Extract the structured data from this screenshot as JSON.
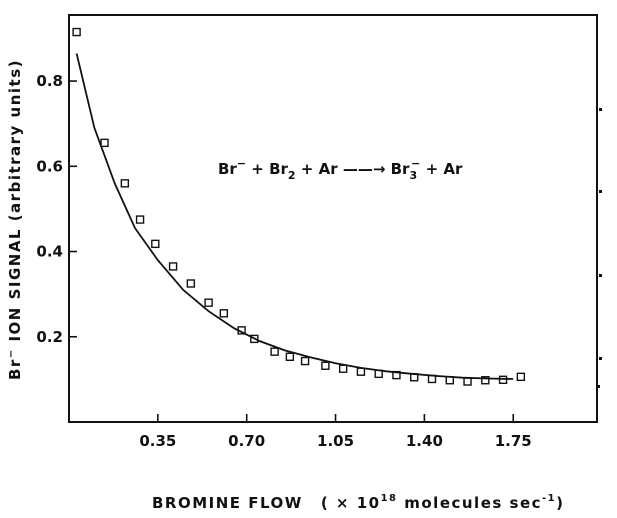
{
  "chart_data": {
    "type": "scatter",
    "title": "",
    "xlabel": {
      "main": "BROMINE  FLOW",
      "unit_open": "( × 10",
      "unit_exp": "18",
      "unit_rest": " molecules  sec",
      "unit_exp2": "-1",
      "unit_close": ")"
    },
    "ylabel": {
      "prefix": "Br",
      "sup": "−",
      "main": " ION  SIGNAL  (arbitrary  units)"
    },
    "xlim": [
      0,
      2.08
    ],
    "ylim": [
      0,
      0.955
    ],
    "x_ticks": [
      "0.35",
      "0.70",
      "1.05",
      "1.40",
      "1.75"
    ],
    "y_ticks": [
      "0.2",
      "0.4",
      "0.6",
      "0.8"
    ],
    "annotation": {
      "r1": "Br",
      "r1_sup": "−",
      "plus1": " + ",
      "r2": "Br",
      "r2_sub": "2",
      "plus2": " + Ar ",
      "arrow": "——→",
      "p1": " Br",
      "p1_sub": "3",
      "p1_sup": "−",
      "plus3": " + Ar"
    },
    "series": [
      {
        "marker": "square",
        "x": [
          0.03,
          0.14,
          0.22,
          0.28,
          0.34,
          0.41,
          0.48,
          0.55,
          0.61,
          0.68,
          0.73,
          0.81,
          0.87,
          0.93,
          1.01,
          1.08,
          1.15,
          1.22,
          1.29,
          1.36,
          1.43,
          1.5,
          1.57,
          1.64,
          1.71,
          1.78
        ],
        "y": [
          0.915,
          0.655,
          0.56,
          0.475,
          0.418,
          0.365,
          0.325,
          0.28,
          0.255,
          0.215,
          0.195,
          0.165,
          0.153,
          0.143,
          0.132,
          0.125,
          0.118,
          0.113,
          0.11,
          0.105,
          0.101,
          0.098,
          0.095,
          0.098,
          0.099,
          0.106
        ]
      },
      {
        "marker": "none",
        "x": [
          0.03,
          0.1,
          0.18,
          0.26,
          0.35,
          0.45,
          0.55,
          0.65,
          0.75,
          0.85,
          0.95,
          1.05,
          1.15,
          1.25,
          1.35,
          1.45,
          1.55,
          1.65,
          1.75
        ],
        "y": [
          0.865,
          0.69,
          0.56,
          0.455,
          0.38,
          0.31,
          0.26,
          0.22,
          0.19,
          0.168,
          0.152,
          0.138,
          0.127,
          0.119,
          0.113,
          0.108,
          0.104,
          0.102,
          0.101
        ]
      }
    ]
  }
}
